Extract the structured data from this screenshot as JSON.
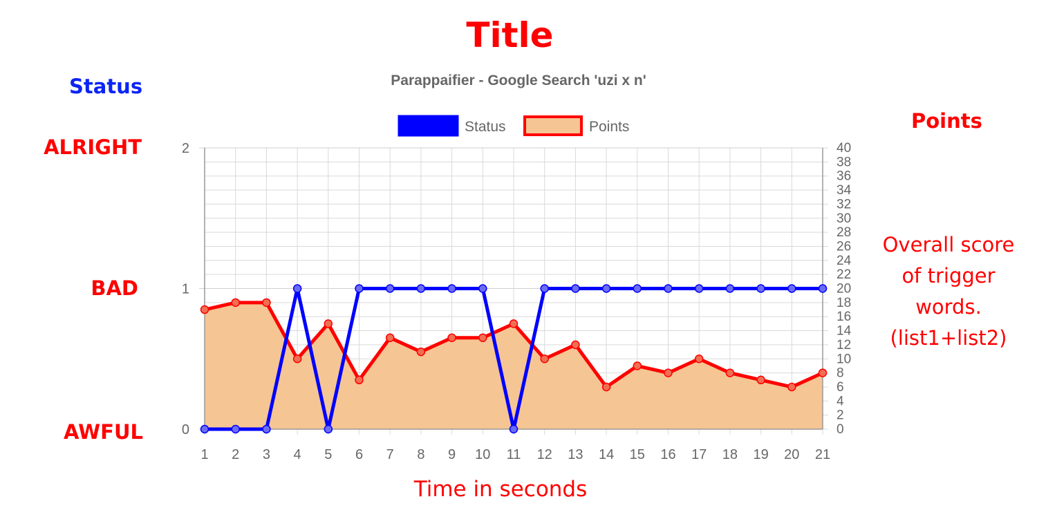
{
  "page": {
    "title": "Title",
    "status_axis_title": "Status",
    "points_axis_title": "Points",
    "status_levels": [
      "AWFUL",
      "BAD",
      "ALRIGHT"
    ],
    "description": [
      "Overall score",
      "of trigger",
      "words.",
      "(list1+list2)"
    ],
    "x_axis_label": "Time in seconds"
  },
  "chart_data": {
    "type": "line",
    "title": "Parappaifier - Google Search 'uzi x n'",
    "xlabel": "Time in seconds",
    "categories": [
      "1",
      "2",
      "3",
      "4",
      "5",
      "6",
      "7",
      "8",
      "9",
      "10",
      "11",
      "12",
      "13",
      "14",
      "15",
      "16",
      "17",
      "18",
      "19",
      "20",
      "21"
    ],
    "legend_position": "top",
    "grid": true,
    "series": [
      {
        "name": "Status",
        "axis": "left",
        "color": "#0000ff",
        "fill": false,
        "values": [
          0,
          0,
          0,
          1,
          0,
          1,
          1,
          1,
          1,
          1,
          0,
          1,
          1,
          1,
          1,
          1,
          1,
          1,
          1,
          1,
          1
        ]
      },
      {
        "name": "Points",
        "axis": "right",
        "color": "#ff0000",
        "fill": true,
        "fill_color": "#f5c593",
        "values": [
          17,
          18,
          18,
          10,
          15,
          7,
          13,
          11,
          13,
          13,
          15,
          10,
          12,
          6,
          9,
          8,
          10,
          8,
          7,
          6,
          8
        ]
      }
    ],
    "y_left": {
      "ylim": [
        0,
        2
      ],
      "ticks": [
        "0",
        "1",
        "2"
      ]
    },
    "y_right": {
      "ylim": [
        0,
        40
      ],
      "ticks": [
        "0",
        "2",
        "4",
        "6",
        "8",
        "10",
        "12",
        "14",
        "16",
        "18",
        "20",
        "22",
        "24",
        "26",
        "28",
        "30",
        "32",
        "34",
        "36",
        "38",
        "40"
      ]
    }
  }
}
